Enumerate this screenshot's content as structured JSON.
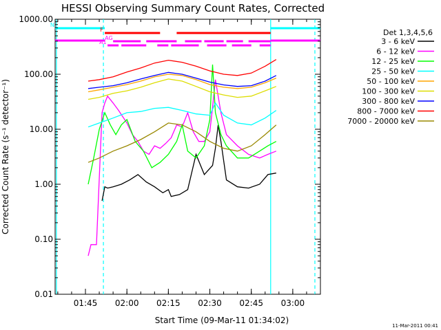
{
  "chart_data": {
    "type": "line",
    "title": "HESSI Observing Summary Count Rates, Corrected",
    "xlabel": "Start Time (09-Mar-11 01:34:02)",
    "ylabel": "Corrected Count Rate (s⁻¹ detector⁻¹)",
    "y_scale": "log",
    "ylim": [
      0.01,
      1000
    ],
    "xlim": [
      "01:34:02",
      "03:10:00"
    ],
    "x_ticks": [
      "01:45",
      "02:00",
      "02:15",
      "02:30",
      "02:45",
      "03:00"
    ],
    "y_ticks": [
      "0.01",
      "0.10",
      "1.00",
      "10.00",
      "100.00",
      "1000.00"
    ],
    "grid": false,
    "legend_title": "Det 1,3,4,5,6",
    "legend_position": "right",
    "series": [
      {
        "name": "3 - 6 keV",
        "color": "#000000",
        "x": [
          "01:51",
          "01:52",
          "01:53",
          "01:55",
          "01:58",
          "02:01",
          "02:04",
          "02:07",
          "02:10",
          "02:13",
          "02:15",
          "02:16",
          "02:19",
          "02:22",
          "02:25",
          "02:28",
          "02:31",
          "02:32",
          "02:33",
          "02:34",
          "02:36",
          "02:40",
          "02:44",
          "02:48",
          "02:51",
          "02:54"
        ],
        "values": [
          0.5,
          0.9,
          0.85,
          0.9,
          1.0,
          1.2,
          1.5,
          1.1,
          0.9,
          0.7,
          0.8,
          0.6,
          0.65,
          0.8,
          3.5,
          1.5,
          2.2,
          4.5,
          12,
          6,
          1.2,
          0.9,
          0.85,
          1.0,
          1.5,
          1.6
        ]
      },
      {
        "name": "6 - 12 keV",
        "color": "#ff00ff",
        "x": [
          "01:46",
          "01:47",
          "01:49",
          "01:51",
          "01:52",
          "01:53",
          "01:55",
          "01:57",
          "02:00",
          "02:02",
          "02:04",
          "02:06",
          "02:08",
          "02:10",
          "02:12",
          "02:14",
          "02:16",
          "02:18",
          "02:20",
          "02:22",
          "02:24",
          "02:26",
          "02:28",
          "02:30",
          "02:31",
          "02:32",
          "02:34",
          "02:36",
          "02:40",
          "02:44",
          "02:48",
          "02:51",
          "02:54"
        ],
        "values": [
          0.05,
          0.08,
          0.08,
          20,
          30,
          40,
          30,
          22,
          13,
          8,
          6,
          4,
          3.5,
          5,
          4.5,
          5.5,
          7,
          12,
          11,
          20,
          9,
          6,
          6,
          9,
          25,
          80,
          20,
          8,
          5,
          3.5,
          3,
          3.5,
          4
        ]
      },
      {
        "name": "12 - 25 keV",
        "color": "#00ff00",
        "x": [
          "01:46",
          "01:48",
          "01:50",
          "01:52",
          "01:54",
          "01:56",
          "01:58",
          "02:00",
          "02:03",
          "02:06",
          "02:09",
          "02:12",
          "02:15",
          "02:18",
          "02:20",
          "02:22",
          "02:25",
          "02:28",
          "02:30",
          "02:31",
          "02:32",
          "02:34",
          "02:36",
          "02:40",
          "02:44",
          "02:48",
          "02:51",
          "02:54"
        ],
        "values": [
          1,
          3,
          10,
          20,
          12,
          8,
          12,
          15,
          6,
          4,
          2,
          2.5,
          3.5,
          6,
          12,
          4,
          3,
          5,
          15,
          150,
          20,
          8,
          5,
          3,
          3,
          4,
          5,
          6
        ]
      },
      {
        "name": "25 - 50 keV",
        "color": "#00ffff",
        "x": [
          "01:46",
          "01:50",
          "01:55",
          "02:00",
          "02:05",
          "02:10",
          "02:15",
          "02:20",
          "02:25",
          "02:30",
          "02:32",
          "02:35",
          "02:40",
          "02:45",
          "02:50",
          "02:54"
        ],
        "values": [
          11,
          13,
          16,
          20,
          21,
          24,
          25,
          22,
          19,
          18,
          30,
          18,
          13,
          12,
          16,
          22
        ]
      },
      {
        "name": "50 - 100 keV",
        "color": "#ffa500",
        "x": [
          "01:46",
          "01:50",
          "01:55",
          "02:00",
          "02:05",
          "02:10",
          "02:15",
          "02:20",
          "02:25",
          "02:30",
          "02:35",
          "02:40",
          "02:45",
          "02:50",
          "02:54"
        ],
        "values": [
          48,
          52,
          58,
          65,
          75,
          90,
          100,
          95,
          80,
          65,
          58,
          55,
          58,
          70,
          85
        ]
      },
      {
        "name": "100 - 300 keV",
        "color": "#dddd00",
        "x": [
          "01:46",
          "01:50",
          "01:55",
          "02:00",
          "02:05",
          "02:10",
          "02:15",
          "02:20",
          "02:25",
          "02:30",
          "02:35",
          "02:40",
          "02:45",
          "02:50",
          "02:54"
        ],
        "values": [
          35,
          38,
          45,
          50,
          58,
          70,
          82,
          75,
          60,
          48,
          42,
          38,
          40,
          50,
          60
        ]
      },
      {
        "name": "300 - 800 keV",
        "color": "#0000ff",
        "x": [
          "01:46",
          "01:50",
          "01:55",
          "02:00",
          "02:05",
          "02:10",
          "02:15",
          "02:20",
          "02:25",
          "02:30",
          "02:35",
          "02:40",
          "02:45",
          "02:50",
          "02:54"
        ],
        "values": [
          55,
          58,
          62,
          70,
          82,
          95,
          108,
          100,
          85,
          72,
          64,
          60,
          62,
          75,
          95
        ]
      },
      {
        "name": "800 - 7000 keV",
        "color": "#ff0000",
        "x": [
          "01:46",
          "01:50",
          "01:55",
          "02:00",
          "02:05",
          "02:10",
          "02:15",
          "02:20",
          "02:25",
          "02:30",
          "02:35",
          "02:40",
          "02:45",
          "02:50",
          "02:54"
        ],
        "values": [
          75,
          80,
          90,
          110,
          130,
          160,
          180,
          165,
          140,
          115,
          100,
          95,
          105,
          140,
          185
        ]
      },
      {
        "name": "7000 - 20000 keV",
        "color": "#998800",
        "x": [
          "01:46",
          "01:50",
          "01:55",
          "02:00",
          "02:05",
          "02:10",
          "02:15",
          "02:20",
          "02:25",
          "02:30",
          "02:35",
          "02:40",
          "02:45",
          "02:50",
          "02:54"
        ],
        "values": [
          2.5,
          3,
          4,
          5,
          6.5,
          9,
          13,
          12,
          9,
          6,
          4.5,
          4,
          5,
          8,
          12
        ]
      }
    ],
    "flag_bars": [
      {
        "label": "N",
        "color": "#00ffff",
        "segments": [
          [
            "01:34",
            "01:52"
          ],
          [
            "02:52",
            "03:10"
          ]
        ]
      },
      {
        "label": "F",
        "color": "#ff0000",
        "segments": [
          [
            "01:52",
            "02:12"
          ],
          [
            "02:18",
            "02:52"
          ]
        ]
      },
      {
        "label": "",
        "color": "#ff00ff",
        "segments": [
          [
            "01:34",
            "01:52"
          ],
          [
            "02:52",
            "03:10"
          ]
        ]
      },
      {
        "label": "AG",
        "color": "#ff00ff",
        "segments": [
          [
            "01:55",
            "02:05"
          ],
          [
            "02:07",
            "02:18"
          ],
          [
            "02:21",
            "02:27"
          ],
          [
            "02:28",
            "02:35"
          ],
          [
            "02:36",
            "02:42"
          ],
          [
            "02:44",
            "02:52"
          ]
        ]
      },
      {
        "label": "A1",
        "color": "#ff00ff",
        "segments": [
          [
            "01:53",
            "01:57"
          ],
          [
            "01:58",
            "02:07"
          ],
          [
            "02:11",
            "02:15"
          ],
          [
            "02:16",
            "02:26"
          ],
          [
            "02:29",
            "02:36"
          ],
          [
            "02:38",
            "02:45"
          ],
          [
            "02:48",
            "02:52"
          ]
        ]
      }
    ],
    "markers": [
      {
        "time": "01:34:30",
        "color": "#00ffff",
        "style": "solid"
      },
      {
        "time": "01:51:30",
        "color": "#00ffff",
        "style": "dashed"
      },
      {
        "time": "02:52",
        "color": "#00ffff",
        "style": "solid"
      },
      {
        "time": "03:08",
        "color": "#00ffff",
        "style": "dashed"
      }
    ],
    "footer": "11-Mar-2011 00:41"
  }
}
